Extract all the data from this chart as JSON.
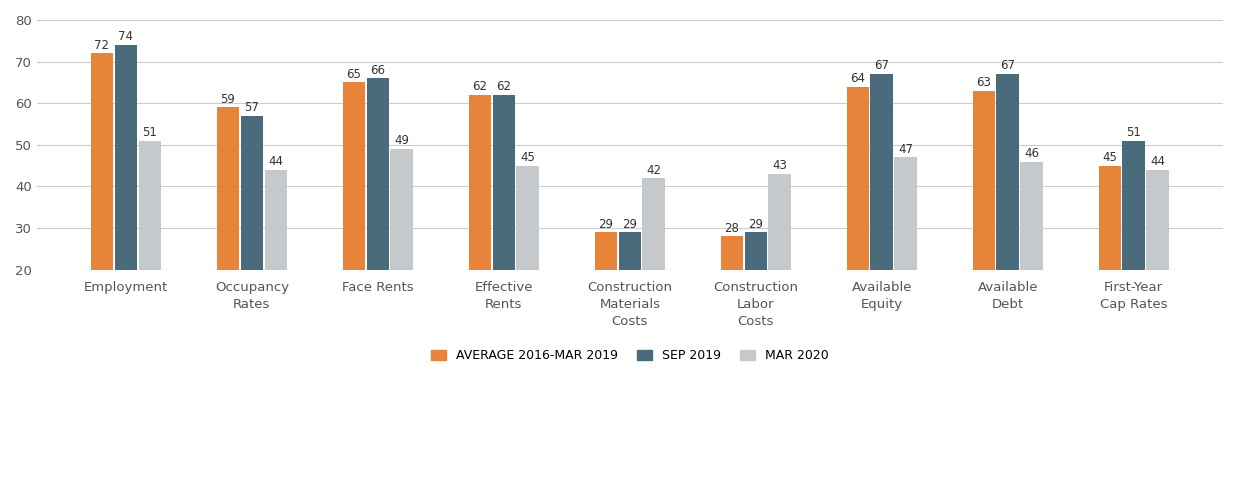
{
  "categories": [
    "Employment",
    "Occupancy\nRates",
    "Face Rents",
    "Effective\nRents",
    "Construction\nMaterials\nCosts",
    "Construction\nLabor\nCosts",
    "Available\nEquity",
    "Available\nDebt",
    "First-Year\nCap Rates"
  ],
  "avg_2016": [
    72,
    59,
    65,
    62,
    29,
    28,
    64,
    63,
    45
  ],
  "sep_2019": [
    74,
    57,
    66,
    62,
    29,
    29,
    67,
    67,
    51
  ],
  "mar_2020": [
    51,
    44,
    49,
    45,
    42,
    43,
    47,
    46,
    44
  ],
  "color_avg": "#E8833A",
  "color_sep": "#4A6B7C",
  "color_mar": "#C5C9CC",
  "ymin": 20,
  "ylim": [
    20,
    80
  ],
  "yticks": [
    20,
    30,
    40,
    50,
    60,
    70,
    80
  ],
  "legend_labels": [
    "AVERAGE 2016-MAR 2019",
    "SEP 2019",
    "MAR 2020"
  ],
  "bar_width": 0.18,
  "bar_gap": 0.19,
  "label_fontsize": 8.5,
  "tick_fontsize": 9.5,
  "legend_fontsize": 9,
  "grid_color": "#CCCCCC"
}
